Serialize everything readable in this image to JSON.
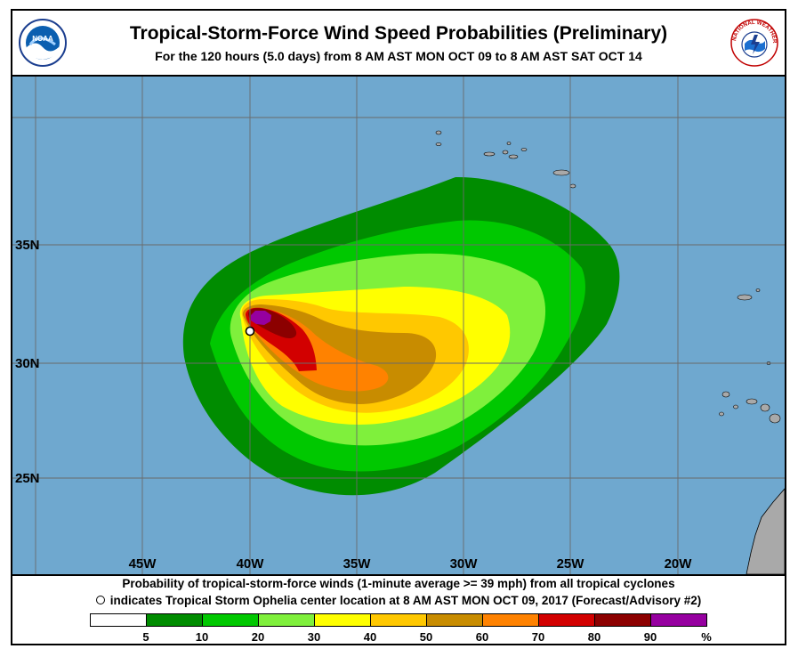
{
  "header": {
    "title": "Tropical-Storm-Force Wind Speed Probabilities (Preliminary)",
    "subtitle": "For the 120 hours (5.0 days) from 8 AM AST MON OCT 09 to 8 AM AST SAT OCT 14",
    "left_logo": {
      "icon": "noaa-logo-icon",
      "text": "NOAA"
    },
    "right_logo": {
      "icon": "nws-logo-icon",
      "text": "NATIONAL WEATHER SERVICE"
    }
  },
  "map": {
    "ocean_color": "#6fa8cf",
    "land_color": "#a9a9a9",
    "grid_color": "#6a6a6a",
    "longitude_labels": [
      "45W",
      "40W",
      "35W",
      "30W",
      "25W",
      "20W"
    ],
    "latitude_labels": [
      "35N",
      "30N",
      "25N"
    ],
    "storm_center": {
      "name": "Tropical Storm Ophelia",
      "lat": 31.4,
      "lon": -39.9
    }
  },
  "footer": {
    "line1": "Probability of tropical-storm-force winds (1-minute average >= 39 mph) from all tropical cyclones",
    "line2": "indicates Tropical Storm Ophelia center location at 8 AM AST MON OCT 09, 2017 (Forecast/Advisory #2)"
  },
  "legend": {
    "colors": [
      "#ffffff",
      "#008c00",
      "#00c800",
      "#7ff03c",
      "#ffff00",
      "#ffc800",
      "#c88c00",
      "#ff8200",
      "#d20000",
      "#8c0000",
      "#9600a0"
    ],
    "labels": [
      "5",
      "10",
      "20",
      "30",
      "40",
      "50",
      "60",
      "70",
      "80",
      "90",
      "%"
    ]
  }
}
